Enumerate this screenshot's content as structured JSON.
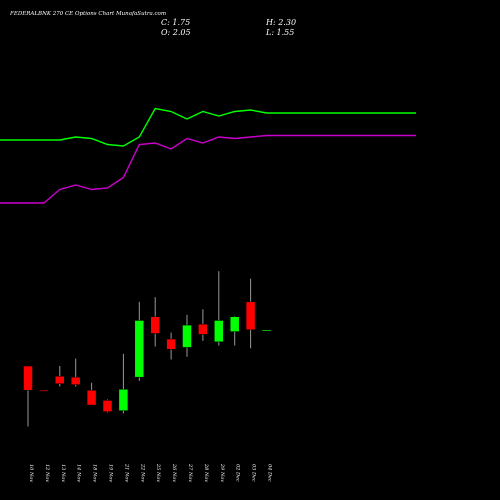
{
  "header": {
    "title": "FEDERALBNK 270  CE Options  Chart MunafaSutra.com",
    "close": "C: 1.75",
    "open": "O: 2.05",
    "high": "H: 2.30",
    "low": "L: 1.55"
  },
  "colors": {
    "background": "#000000",
    "bull": "#00ff00",
    "bear": "#ff0000",
    "upper_line": "#00ff00",
    "lower_line": "#cc00cc",
    "wick": "#999999",
    "text": "#ffffff"
  },
  "chart_data": {
    "type": "candlestick",
    "title": "FEDERALBNK 270  CE Options  Chart MunafaSutra.com",
    "categories": [
      "10 Nov",
      "12 Nov",
      "13 Nov",
      "14 Nov",
      "18 Nov",
      "19 Nov",
      "21 Nov",
      "22 Nov",
      "25 Nov",
      "26 Nov",
      "27 Nov",
      "28 Nov",
      "29 Nov",
      "02 Dec",
      "03 Dec",
      "04 Dec"
    ],
    "ohlc": [
      {
        "open": 1.36,
        "high": 1.36,
        "low": 0.71,
        "close": 1.1
      },
      {
        "open": 1.1,
        "high": 1.1,
        "low": 1.1,
        "close": 1.09
      },
      {
        "open": 1.25,
        "high": 1.36,
        "low": 1.14,
        "close": 1.17
      },
      {
        "open": 1.24,
        "high": 1.44,
        "low": 1.14,
        "close": 1.16
      },
      {
        "open": 1.1,
        "high": 1.18,
        "low": 0.95,
        "close": 0.94
      },
      {
        "open": 0.99,
        "high": 1.0,
        "low": 0.86,
        "close": 0.87
      },
      {
        "open": 0.88,
        "high": 1.49,
        "low": 0.85,
        "close": 1.11
      },
      {
        "open": 1.24,
        "high": 2.05,
        "low": 1.2,
        "close": 1.85
      },
      {
        "open": 1.89,
        "high": 2.1,
        "low": 1.57,
        "close": 1.71
      },
      {
        "open": 1.65,
        "high": 1.72,
        "low": 1.43,
        "close": 1.54
      },
      {
        "open": 1.56,
        "high": 1.91,
        "low": 1.46,
        "close": 1.8
      },
      {
        "open": 1.81,
        "high": 1.97,
        "low": 1.63,
        "close": 1.7
      },
      {
        "open": 1.62,
        "high": 2.38,
        "low": 1.58,
        "close": 1.85
      },
      {
        "open": 1.73,
        "high": 1.9,
        "low": 1.58,
        "close": 1.89
      },
      {
        "open": 2.05,
        "high": 2.3,
        "low": 1.55,
        "close": 1.75
      },
      {
        "open": 1.75,
        "high": 1.75,
        "low": 1.75,
        "close": 1.75
      }
    ],
    "upper_line": [
      0.7,
      0.7,
      0.7,
      0.72,
      0.71,
      0.67,
      0.66,
      0.72,
      0.91,
      0.89,
      0.84,
      0.89,
      0.86,
      0.89,
      0.9,
      0.88
    ],
    "lower_line": [
      0.28,
      0.28,
      0.37,
      0.4,
      0.37,
      0.38,
      0.45,
      0.67,
      0.68,
      0.64,
      0.71,
      0.68,
      0.72,
      0.71,
      0.72,
      0.73
    ],
    "ylim": [
      0.5,
      2.5
    ],
    "grid": false
  }
}
